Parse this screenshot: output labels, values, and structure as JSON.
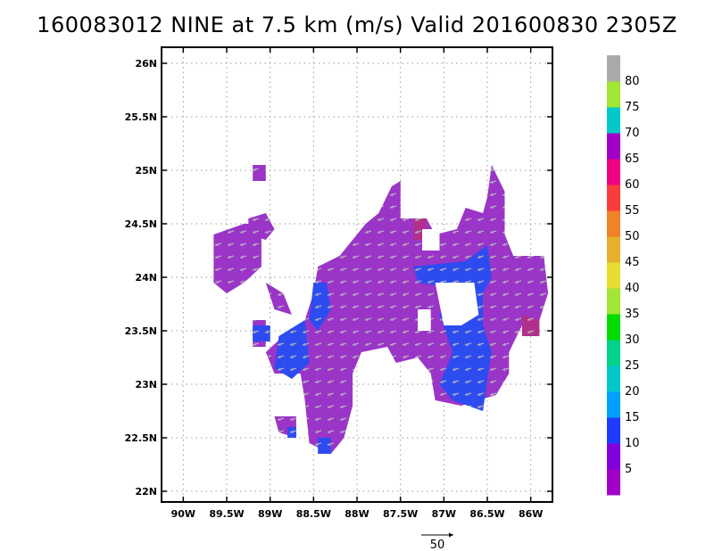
{
  "title": "160083012 NINE at 7.5 km (m/s) Valid 201600830 2305Z",
  "chart_data": {
    "type": "heatmap",
    "title": "160083012 NINE at 7.5 km (m/s) Valid 201600830 2305Z",
    "x_tick_labels": [
      "90W",
      "89.5W",
      "89W",
      "88.5W",
      "88W",
      "87.5W",
      "87W",
      "86.5W",
      "86W"
    ],
    "x_tick_values": [
      -90,
      -89.5,
      -89,
      -88.5,
      -88,
      -87.5,
      -87,
      -86.5,
      -86
    ],
    "y_tick_labels": [
      "22N",
      "22.5N",
      "23N",
      "23.5N",
      "24N",
      "24.5N",
      "25N",
      "25.5N",
      "26N"
    ],
    "y_tick_values": [
      22,
      22.5,
      23,
      23.5,
      24,
      24.5,
      25,
      25.5,
      26
    ],
    "xlim": [
      -90.25,
      -85.75
    ],
    "ylim": [
      21.9,
      26.15
    ],
    "grid": true,
    "colorbar": {
      "labels": [
        "5",
        "10",
        "15",
        "20",
        "25",
        "30",
        "35",
        "40",
        "45",
        "50",
        "55",
        "60",
        "65",
        "70",
        "75",
        "80"
      ],
      "boundaries": [
        5,
        10,
        15,
        20,
        25,
        30,
        35,
        40,
        45,
        50,
        55,
        60,
        65,
        70,
        75,
        80
      ],
      "colors": [
        "#a000c8",
        "#8200dc",
        "#1e3cff",
        "#00a0ff",
        "#00c8c8",
        "#00d28c",
        "#00dc00",
        "#a0e632",
        "#e6dc32",
        "#e6af2d",
        "#f08228",
        "#fa3c3c",
        "#f00082",
        "#a000c8",
        "#00c8c8",
        "#a0e632",
        "#aaaaaa"
      ]
    },
    "reference_vector": {
      "label": "50",
      "value": 50
    },
    "regions": [
      {
        "name": "magenta (5 m/s)",
        "color": "#9a35c8",
        "polygon": [
          [
            -89.65,
            24.4
          ],
          [
            -89.3,
            24.5
          ],
          [
            -89.1,
            24.5
          ],
          [
            -89.1,
            24.1
          ],
          [
            -89.3,
            23.95
          ],
          [
            -89.5,
            23.85
          ],
          [
            -89.65,
            23.95
          ]
        ]
      },
      {
        "name": "magenta (5 m/s)",
        "color": "#9a35c8",
        "polygon": [
          [
            -89.25,
            24.55
          ],
          [
            -89.05,
            24.6
          ],
          [
            -88.95,
            24.45
          ],
          [
            -89.05,
            24.35
          ],
          [
            -89.25,
            24.4
          ]
        ]
      },
      {
        "name": "magenta (5 m/s)",
        "color": "#9a35c8",
        "polygon": [
          [
            -89.05,
            23.95
          ],
          [
            -88.85,
            23.85
          ],
          [
            -88.75,
            23.65
          ],
          [
            -88.95,
            23.7
          ]
        ]
      },
      {
        "name": "magenta (5 m/s)",
        "color": "#9a35c8",
        "polygon": [
          [
            -89.2,
            25.05
          ],
          [
            -89.05,
            25.05
          ],
          [
            -89.05,
            24.9
          ],
          [
            -89.2,
            24.9
          ]
        ]
      },
      {
        "name": "magenta (5 m/s)",
        "color": "#9a35c8",
        "polygon": [
          [
            -88.45,
            24.1
          ],
          [
            -88.2,
            24.2
          ],
          [
            -87.9,
            24.5
          ],
          [
            -87.75,
            24.6
          ],
          [
            -87.6,
            24.85
          ],
          [
            -87.5,
            24.9
          ],
          [
            -87.5,
            24.55
          ],
          [
            -87.2,
            24.55
          ],
          [
            -87.1,
            24.4
          ],
          [
            -86.85,
            24.45
          ],
          [
            -86.75,
            24.65
          ],
          [
            -86.55,
            24.6
          ],
          [
            -86.5,
            24.75
          ],
          [
            -86.45,
            25.05
          ],
          [
            -86.3,
            24.8
          ],
          [
            -86.3,
            24.4
          ],
          [
            -86.2,
            24.2
          ],
          [
            -85.85,
            24.2
          ],
          [
            -85.8,
            23.85
          ],
          [
            -85.9,
            23.6
          ],
          [
            -86.1,
            23.55
          ],
          [
            -86.25,
            23.3
          ],
          [
            -86.25,
            23.1
          ],
          [
            -86.4,
            22.9
          ],
          [
            -86.8,
            22.8
          ],
          [
            -87.1,
            22.85
          ],
          [
            -87.15,
            23.1
          ],
          [
            -87.3,
            23.25
          ],
          [
            -87.55,
            23.2
          ],
          [
            -87.65,
            23.35
          ],
          [
            -87.95,
            23.3
          ],
          [
            -88.05,
            23.1
          ],
          [
            -88.05,
            22.8
          ],
          [
            -88.15,
            22.5
          ],
          [
            -88.3,
            22.35
          ],
          [
            -88.55,
            22.45
          ],
          [
            -88.6,
            22.85
          ],
          [
            -88.65,
            23.1
          ],
          [
            -88.95,
            23.1
          ],
          [
            -89.05,
            23.3
          ],
          [
            -88.85,
            23.45
          ],
          [
            -88.6,
            23.6
          ],
          [
            -88.5,
            23.85
          ]
        ]
      },
      {
        "name": "magenta (5 m/s)",
        "color": "#9a35c8",
        "polygon": [
          [
            -89.2,
            23.6
          ],
          [
            -89.05,
            23.6
          ],
          [
            -89.05,
            23.35
          ],
          [
            -89.2,
            23.35
          ]
        ]
      },
      {
        "name": "magenta (5 m/s)",
        "color": "#9a35c8",
        "polygon": [
          [
            -88.95,
            22.7
          ],
          [
            -88.7,
            22.7
          ],
          [
            -88.7,
            22.5
          ],
          [
            -88.9,
            22.55
          ]
        ]
      },
      {
        "name": "blue (10 m/s)",
        "color": "#2d4cf0",
        "polygon": [
          [
            -88.5,
            23.95
          ],
          [
            -88.35,
            23.95
          ],
          [
            -88.3,
            23.7
          ],
          [
            -88.45,
            23.5
          ],
          [
            -88.55,
            23.6
          ]
        ]
      },
      {
        "name": "blue (10 m/s)",
        "color": "#2d4cf0",
        "polygon": [
          [
            -88.9,
            23.45
          ],
          [
            -88.6,
            23.6
          ],
          [
            -88.55,
            23.2
          ],
          [
            -88.75,
            23.05
          ],
          [
            -88.95,
            23.15
          ]
        ]
      },
      {
        "name": "blue (10 m/s)",
        "color": "#2d4cf0",
        "polygon": [
          [
            -89.2,
            23.55
          ],
          [
            -89.0,
            23.55
          ],
          [
            -89.0,
            23.4
          ],
          [
            -89.2,
            23.4
          ]
        ]
      },
      {
        "name": "blue (10 m/s)",
        "color": "#2d4cf0",
        "polygon": [
          [
            -87.35,
            24.1
          ],
          [
            -86.75,
            24.15
          ],
          [
            -86.5,
            24.3
          ],
          [
            -86.45,
            24.0
          ],
          [
            -86.55,
            23.85
          ],
          [
            -86.55,
            23.55
          ],
          [
            -86.45,
            23.3
          ],
          [
            -86.5,
            23.05
          ],
          [
            -86.55,
            22.75
          ],
          [
            -86.9,
            22.85
          ],
          [
            -87.05,
            23.0
          ],
          [
            -86.9,
            23.3
          ],
          [
            -87.05,
            23.65
          ],
          [
            -86.9,
            23.9
          ],
          [
            -87.3,
            23.95
          ]
        ]
      },
      {
        "name": "blue (10 m/s)",
        "color": "#2d4cf0",
        "polygon": [
          [
            -88.45,
            22.5
          ],
          [
            -88.3,
            22.5
          ],
          [
            -88.3,
            22.35
          ],
          [
            -88.45,
            22.35
          ]
        ]
      },
      {
        "name": "blue (10 m/s)",
        "color": "#2d4cf0",
        "polygon": [
          [
            -88.8,
            22.6
          ],
          [
            -88.7,
            22.6
          ],
          [
            -88.7,
            22.5
          ],
          [
            -88.8,
            22.5
          ]
        ]
      },
      {
        "name": "dark magenta",
        "color": "#b0308c",
        "polygon": [
          [
            -86.1,
            23.65
          ],
          [
            -85.9,
            23.6
          ],
          [
            -85.9,
            23.45
          ],
          [
            -86.1,
            23.45
          ]
        ]
      },
      {
        "name": "dark magenta",
        "color": "#b0308c",
        "polygon": [
          [
            -87.35,
            24.55
          ],
          [
            -87.2,
            24.55
          ],
          [
            -87.2,
            24.35
          ],
          [
            -87.35,
            24.35
          ]
        ]
      }
    ],
    "holes": [
      {
        "polygon": [
          [
            -87.1,
            23.95
          ],
          [
            -86.65,
            23.95
          ],
          [
            -86.6,
            23.65
          ],
          [
            -86.8,
            23.55
          ],
          [
            -87.0,
            23.55
          ]
        ]
      },
      {
        "polygon": [
          [
            -87.25,
            24.45
          ],
          [
            -87.05,
            24.45
          ],
          [
            -87.05,
            24.25
          ],
          [
            -87.25,
            24.25
          ]
        ]
      },
      {
        "polygon": [
          [
            -87.3,
            23.7
          ],
          [
            -87.15,
            23.7
          ],
          [
            -87.15,
            23.5
          ],
          [
            -87.3,
            23.5
          ]
        ]
      }
    ]
  }
}
